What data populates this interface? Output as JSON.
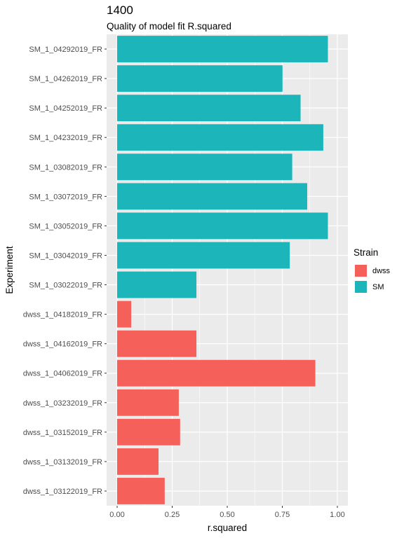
{
  "chart_data": {
    "type": "bar",
    "orientation": "horizontal",
    "title": "1400",
    "subtitle": "Quality of model fit R.squared",
    "xlabel": "r.squared",
    "ylabel": "Experiment",
    "xlim": [
      0,
      1
    ],
    "xticks": [
      "0.00",
      "0.25",
      "0.50",
      "0.75",
      "1.00"
    ],
    "categories": [
      "SM_1_04292019_FR",
      "SM_1_04262019_FR",
      "SM_1_04252019_FR",
      "SM_1_04232019_FR",
      "SM_1_03082019_FR",
      "SM_1_03072019_FR",
      "SM_1_03052019_FR",
      "SM_1_03042019_FR",
      "SM_1_03022019_FR",
      "dwss_1_04182019_FR",
      "dwss_1_04162019_FR",
      "dwss_1_04062019_FR",
      "dwss_1_03232019_FR",
      "dwss_1_03152019_FR",
      "dwss_1_03132019_FR",
      "dwss_1_03122019_FR"
    ],
    "values": [
      0.957,
      0.751,
      0.833,
      0.936,
      0.795,
      0.863,
      0.957,
      0.784,
      0.36,
      0.064,
      0.36,
      0.9,
      0.28,
      0.286,
      0.188,
      0.216
    ],
    "groups": [
      "SM",
      "SM",
      "SM",
      "SM",
      "SM",
      "SM",
      "SM",
      "SM",
      "SM",
      "dwss",
      "dwss",
      "dwss",
      "dwss",
      "dwss",
      "dwss",
      "dwss"
    ],
    "legend": {
      "title": "Strain",
      "position": "right",
      "entries": [
        {
          "name": "dwss",
          "color": "#F8766D"
        },
        {
          "name": "SM",
          "color": "#00BFC4"
        }
      ]
    },
    "colors": {
      "dwss": "#F5605A",
      "SM": "#1BB5BA"
    },
    "panel_background": "#EBEBEB",
    "grid": true
  }
}
